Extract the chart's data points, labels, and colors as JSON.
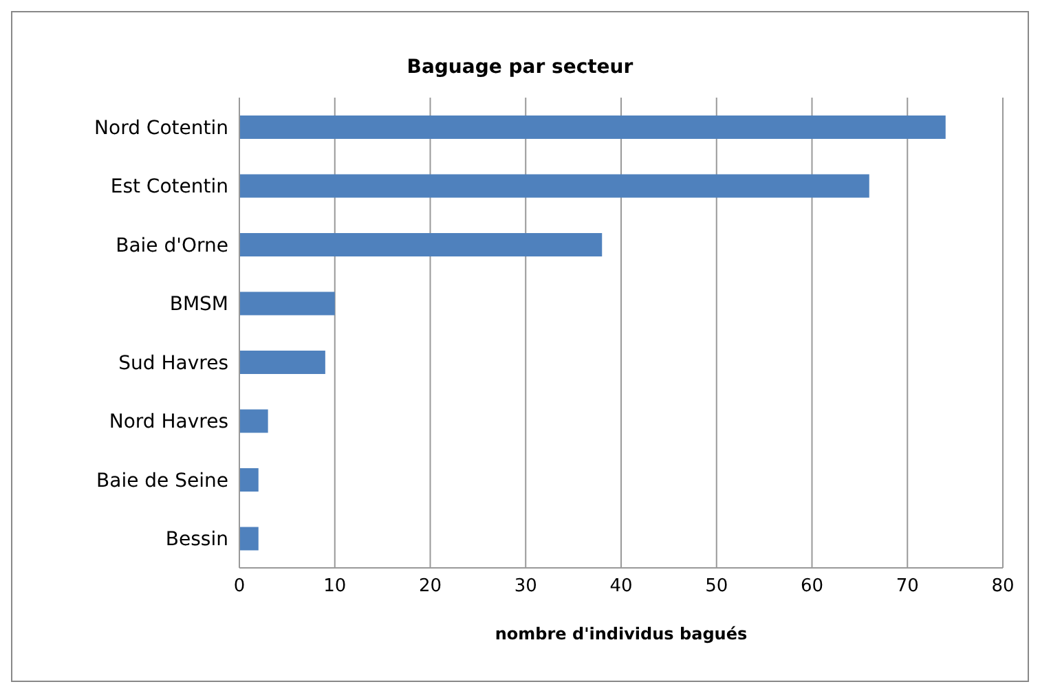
{
  "chart_data": {
    "type": "bar",
    "orientation": "horizontal",
    "title": "Baguage par secteur",
    "xlabel": "nombre d'individus bagués",
    "categories": [
      "Nord Cotentin",
      "Est Cotentin",
      "Baie d'Orne",
      "BMSM",
      "Sud Havres",
      "Nord Havres",
      "Baie de Seine",
      "Bessin"
    ],
    "values": [
      74,
      66,
      38,
      10,
      9,
      3,
      2,
      2
    ],
    "color": "#4f81bd",
    "xlim": [
      0,
      80
    ],
    "xticks": [
      0,
      10,
      20,
      30,
      40,
      50,
      60,
      70,
      80
    ],
    "grid": "x",
    "legend": false
  }
}
